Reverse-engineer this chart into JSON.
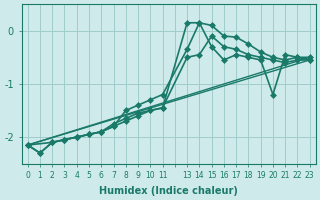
{
  "bg_color": "#ceeaea",
  "grid_color": "#a0cccc",
  "line_color": "#1a7a6a",
  "marker_color": "#1a7a6a",
  "xlabel": "Humidex (Indice chaleur)",
  "ylabel": "",
  "xlim": [
    -0.5,
    23.5
  ],
  "ylim": [
    -2.5,
    0.5
  ],
  "yticks": [
    0,
    -1,
    -2
  ],
  "xticks": [
    0,
    1,
    2,
    3,
    4,
    5,
    6,
    7,
    8,
    9,
    10,
    11,
    12,
    13,
    14,
    15,
    16,
    17,
    18,
    19,
    20,
    21,
    22,
    23
  ],
  "xtick_labels": [
    "0",
    "1",
    "2",
    "3",
    "4",
    "5",
    "6",
    "7",
    "8",
    "9",
    "10",
    "11",
    "",
    "13",
    "14",
    "15",
    "16",
    "17",
    "18",
    "19",
    "20",
    "21",
    "22",
    "23"
  ],
  "lines": [
    {
      "x": [
        0,
        1,
        2,
        3,
        4,
        5,
        6,
        7,
        8,
        9,
        10,
        11,
        13,
        14,
        15,
        16,
        17,
        18,
        19,
        20,
        21,
        22,
        23
      ],
      "y": [
        -2.15,
        -2.3,
        -2.1,
        -2.05,
        -2.0,
        -1.95,
        -1.9,
        -1.75,
        -1.65,
        -1.55,
        -1.5,
        -1.45,
        -0.5,
        -0.45,
        -0.1,
        -0.3,
        -0.35,
        -0.45,
        -0.5,
        -0.55,
        -0.6,
        -0.55,
        -0.55
      ],
      "marker": "D",
      "markersize": 3,
      "linewidth": 1.2
    },
    {
      "x": [
        0,
        1,
        2,
        3,
        4,
        5,
        6,
        7,
        8,
        9,
        10,
        11,
        13,
        14,
        15,
        16,
        17,
        18,
        19,
        20,
        21,
        22,
        23
      ],
      "y": [
        -2.15,
        -2.3,
        -2.1,
        -2.05,
        -2.0,
        -1.95,
        -1.9,
        -1.8,
        -1.7,
        -1.6,
        -1.5,
        -1.45,
        0.15,
        0.15,
        -0.3,
        -0.55,
        -0.45,
        -0.5,
        -0.55,
        -1.2,
        -0.45,
        -0.5,
        -0.55
      ],
      "marker": "D",
      "markersize": 3,
      "linewidth": 1.2
    },
    {
      "x": [
        0,
        2,
        3,
        4,
        5,
        6,
        7,
        8,
        9,
        10,
        11,
        13,
        14,
        15,
        16,
        17,
        18,
        19,
        20,
        21,
        22,
        23
      ],
      "y": [
        -2.15,
        -2.1,
        -2.05,
        -2.0,
        -1.95,
        -1.9,
        -1.8,
        -1.5,
        -1.4,
        -1.3,
        -1.2,
        -0.35,
        0.15,
        0.1,
        -0.1,
        -0.12,
        -0.25,
        -0.4,
        -0.5,
        -0.55,
        -0.5,
        -0.5
      ],
      "marker": "D",
      "markersize": 3,
      "linewidth": 1.2
    },
    {
      "x": [
        0,
        23
      ],
      "y": [
        -2.15,
        -0.5
      ],
      "marker": null,
      "markersize": 0,
      "linewidth": 1.0
    },
    {
      "x": [
        0,
        23
      ],
      "y": [
        -2.15,
        -0.55
      ],
      "marker": null,
      "markersize": 0,
      "linewidth": 1.0
    }
  ]
}
